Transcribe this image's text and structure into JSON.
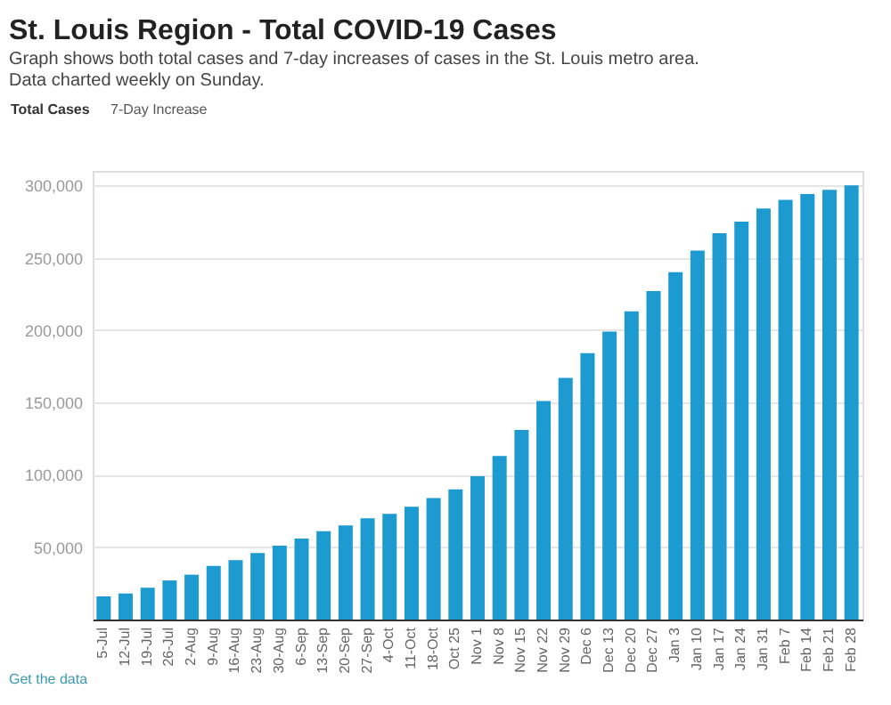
{
  "chart_data": {
    "type": "bar",
    "title": "St. Louis Region - Total COVID-19 Cases",
    "subtitle": "Graph shows both total cases and 7-day increases of cases in the St. Louis metro area. Data charted weekly on Sunday.",
    "annotations": [
      "Total Cases",
      "7-Day Increase",
      "Get the data"
    ],
    "categories": [
      "5-Jul",
      "12-Jul",
      "19-Jul",
      "26-Jul",
      "2-Aug",
      "9-Aug",
      "16-Aug",
      "23-Aug",
      "30-Aug",
      "6-Sep",
      "13-Sep",
      "20-Sep",
      "27-Sep",
      "4-Oct",
      "11-Oct",
      "18-Oct",
      "Oct 25",
      "Nov 1",
      "Nov 8",
      "Nov 15",
      "Nov 22",
      "Nov 29",
      "Dec 6",
      "Dec 13",
      "Dec 20",
      "Dec 27",
      "Jan 3",
      "Jan 10",
      "Jan 17",
      "Jan 24",
      "Jan 31",
      "Feb 7",
      "Feb 14",
      "Feb 21",
      "Feb 28"
    ],
    "values": [
      16000,
      18000,
      22000,
      27000,
      31000,
      37000,
      41000,
      46000,
      51000,
      56000,
      61000,
      65000,
      70000,
      73000,
      78000,
      84000,
      90000,
      99000,
      113000,
      131000,
      151000,
      167000,
      184000,
      199000,
      213000,
      227000,
      240000,
      255000,
      267000,
      275000,
      284000,
      290000,
      294000,
      297000,
      300000
    ],
    "color": "#1d9bd1",
    "ylim": [
      0,
      310000
    ],
    "yticks": [
      {
        "value": 50000,
        "label": "50,000"
      },
      {
        "value": 100000,
        "label": "100,000"
      },
      {
        "value": 150000,
        "label": "150,000"
      },
      {
        "value": 200000,
        "label": "200,000"
      },
      {
        "value": 250000,
        "label": "250,000"
      },
      {
        "value": 300000,
        "label": "300,000"
      }
    ],
    "grid": "y"
  }
}
